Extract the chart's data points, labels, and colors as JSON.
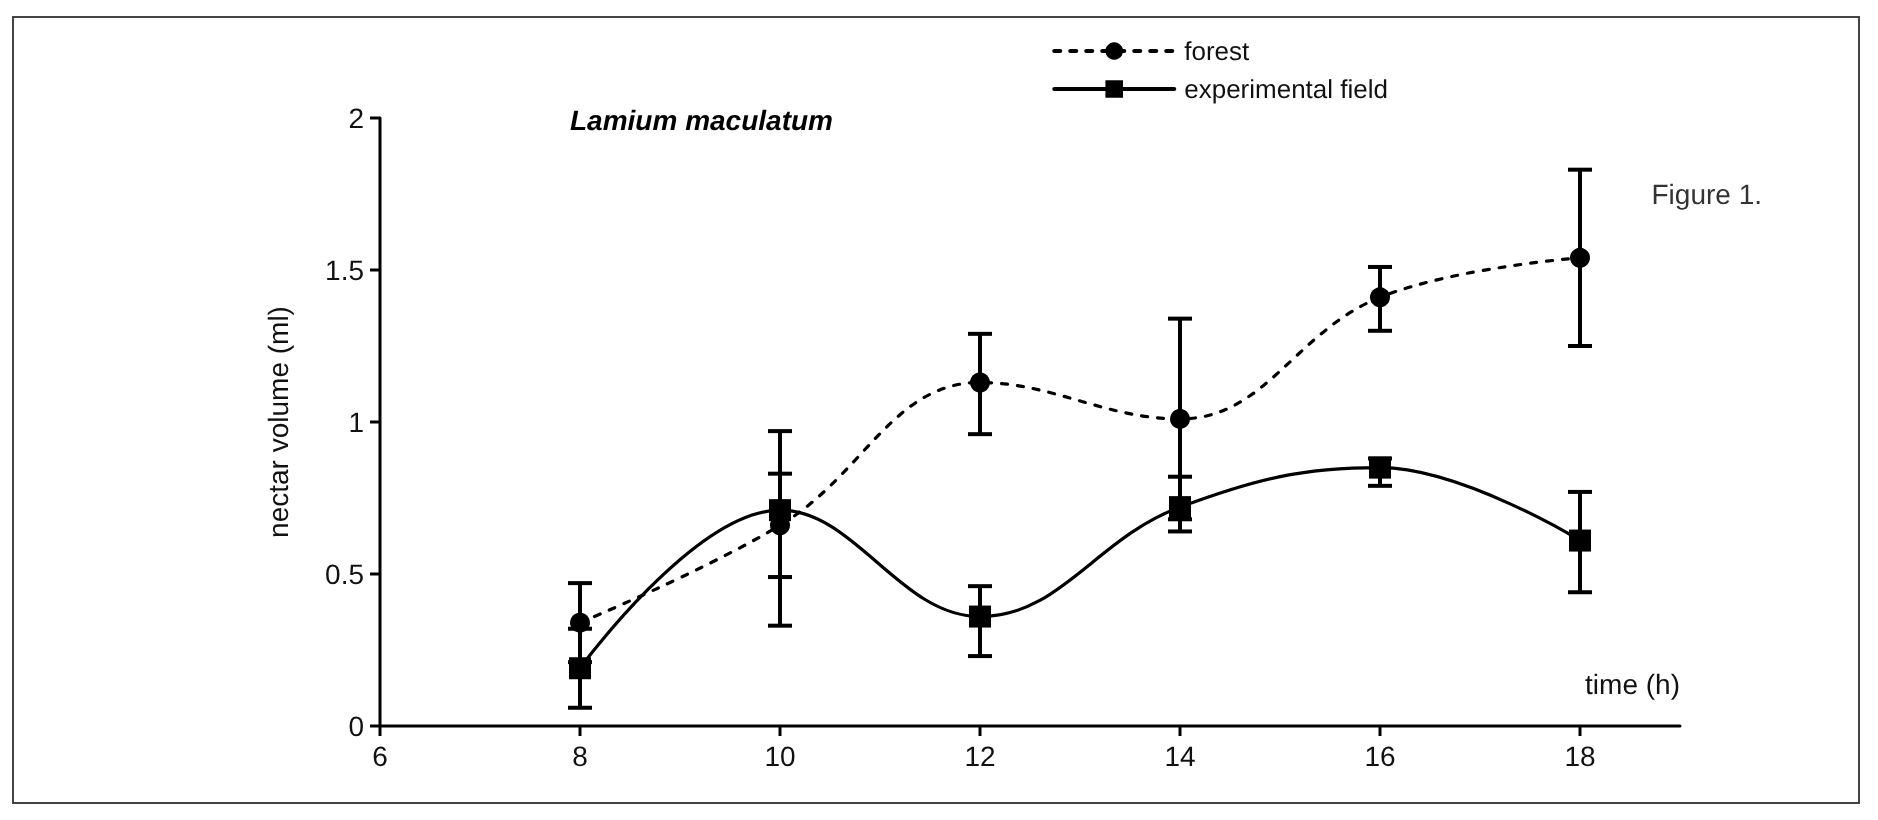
{
  "chart_data": {
    "type": "line",
    "title": "Lamium maculatum",
    "xlabel": "time (h)",
    "ylabel": "nectar volume (ml)",
    "x": [
      8,
      10,
      12,
      14,
      16,
      18
    ],
    "series": [
      {
        "name": "forest",
        "color": "#000000",
        "marker": "circle",
        "line_style": "dashed",
        "values": [
          0.34,
          0.66,
          1.13,
          1.01,
          1.41,
          1.54
        ],
        "errors": [
          [
            0.21,
            0.47
          ],
          [
            0.49,
            0.83
          ],
          [
            0.96,
            1.29
          ],
          [
            0.68,
            1.34
          ],
          [
            1.3,
            1.51
          ],
          [
            1.25,
            1.83
          ]
        ]
      },
      {
        "name": "experimental field",
        "color": "#000000",
        "marker": "square",
        "line_style": "solid",
        "values": [
          0.19,
          0.71,
          0.36,
          0.72,
          0.85,
          0.61
        ],
        "errors": [
          [
            0.06,
            0.32
          ],
          [
            0.33,
            0.97
          ],
          [
            0.23,
            0.46
          ],
          [
            0.64,
            0.82
          ],
          [
            0.79,
            0.88
          ],
          [
            0.44,
            0.77
          ]
        ]
      }
    ],
    "xlim": [
      6,
      19
    ],
    "xticks": [
      6,
      8,
      10,
      12,
      14,
      16,
      18
    ],
    "ylim": [
      0,
      2
    ],
    "yticks": [
      0,
      0.5,
      1,
      1.5,
      2
    ],
    "legend": "top right",
    "grid": false,
    "annotations": [
      "Figure 1."
    ]
  }
}
